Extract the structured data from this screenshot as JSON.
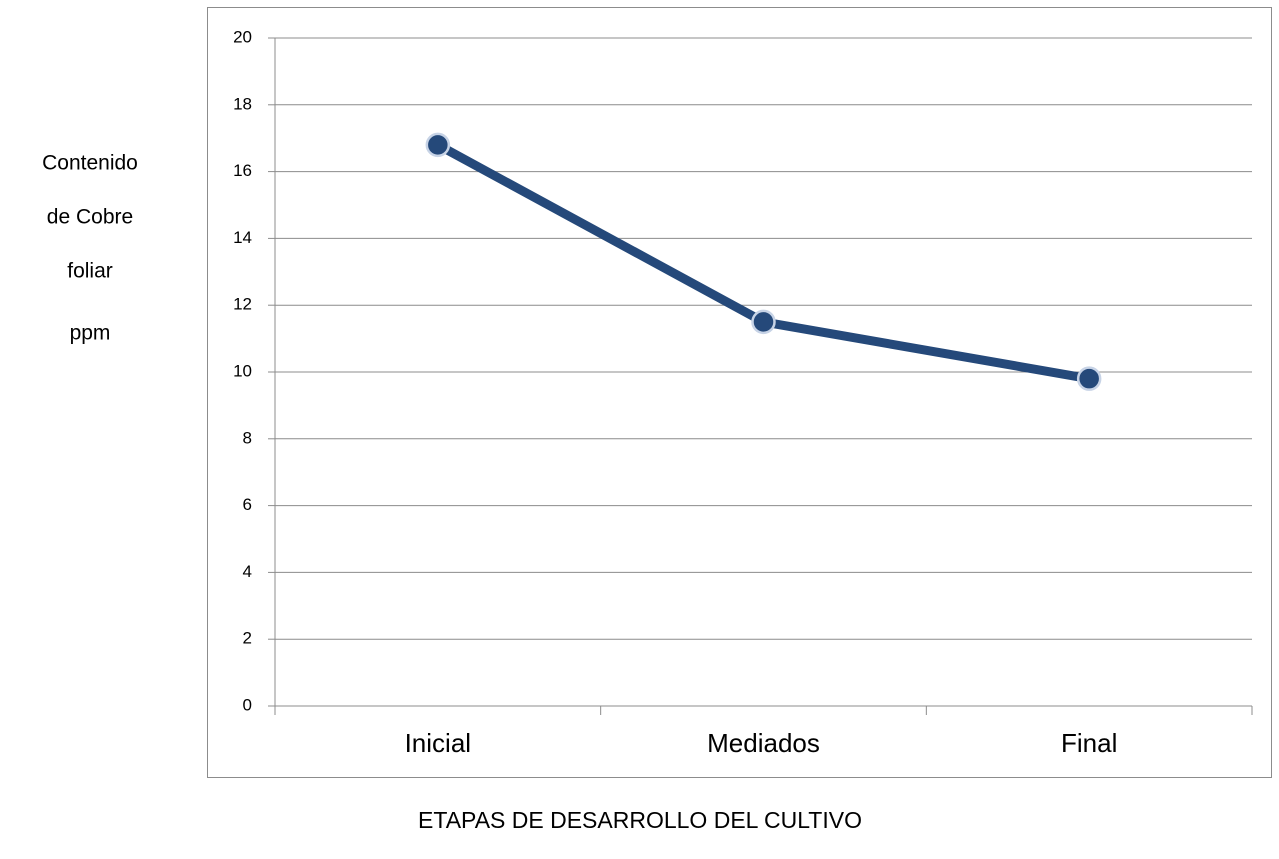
{
  "chart_data": {
    "type": "line",
    "y_label": [
      "Contenido",
      "de Cobre",
      "foliar",
      "ppm"
    ],
    "x_label": "ETAPAS DE DESARROLLO DEL CULTIVO",
    "categories": [
      "Inicial",
      "Mediados",
      "Final"
    ],
    "series": [
      {
        "color": "#25497a",
        "values": [
          16.8,
          11.5,
          9.8
        ]
      }
    ],
    "ylim": [
      0,
      20
    ],
    "yticks": [
      0,
      2,
      4,
      6,
      8,
      10,
      12,
      14,
      16,
      18,
      20
    ],
    "grid": true
  }
}
